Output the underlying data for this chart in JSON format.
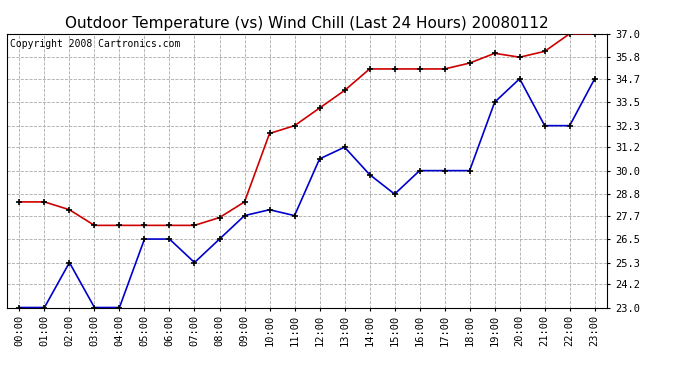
{
  "title": "Outdoor Temperature (vs) Wind Chill (Last 24 Hours) 20080112",
  "copyright": "Copyright 2008 Cartronics.com",
  "x_labels": [
    "00:00",
    "01:00",
    "02:00",
    "03:00",
    "04:00",
    "05:00",
    "06:00",
    "07:00",
    "08:00",
    "09:00",
    "10:00",
    "11:00",
    "12:00",
    "13:00",
    "14:00",
    "15:00",
    "16:00",
    "17:00",
    "18:00",
    "19:00",
    "20:00",
    "21:00",
    "22:00",
    "23:00"
  ],
  "red_data": [
    28.4,
    28.4,
    28.0,
    27.2,
    27.2,
    27.2,
    27.2,
    27.2,
    27.6,
    28.4,
    31.9,
    32.3,
    33.2,
    34.1,
    35.2,
    35.2,
    35.2,
    35.2,
    35.5,
    36.0,
    35.8,
    36.1,
    37.0,
    37.0
  ],
  "blue_data": [
    23.0,
    23.0,
    25.3,
    23.0,
    23.0,
    26.5,
    26.5,
    25.3,
    26.5,
    27.7,
    28.0,
    27.7,
    30.6,
    31.2,
    29.8,
    28.8,
    30.0,
    30.0,
    30.0,
    33.5,
    34.7,
    32.3,
    32.3,
    34.7
  ],
  "red_color": "#cc0000",
  "blue_color": "#0000cc",
  "ylim_min": 23.0,
  "ylim_max": 37.0,
  "yticks": [
    23.0,
    24.2,
    25.3,
    26.5,
    27.7,
    28.8,
    30.0,
    31.2,
    32.3,
    33.5,
    34.7,
    35.8,
    37.0
  ],
  "bg_color": "#ffffff",
  "grid_color": "#aaaaaa",
  "title_fontsize": 11,
  "copyright_fontsize": 7,
  "tick_fontsize": 7.5
}
